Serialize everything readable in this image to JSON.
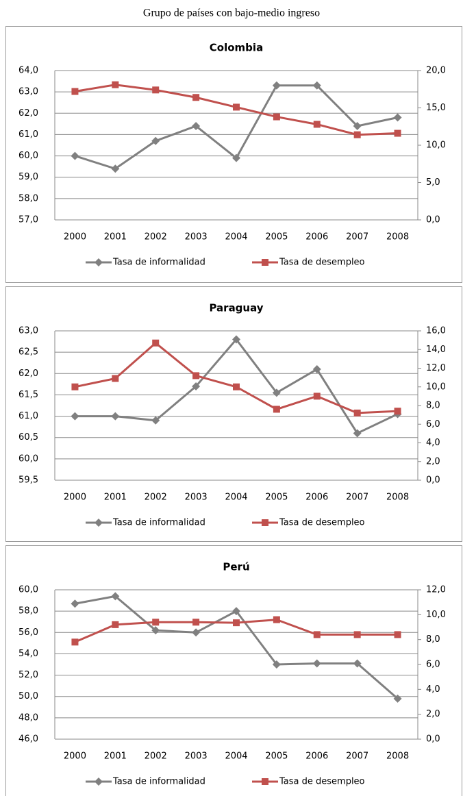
{
  "title": "Grupo de países con bajo-medio ingreso",
  "chart_data": [
    {
      "type": "line",
      "title": "Colombia",
      "categories": [
        "2000",
        "2001",
        "2002",
        "2003",
        "2004",
        "2005",
        "2006",
        "2007",
        "2008"
      ],
      "series": [
        {
          "name": "Tasa de informalidad",
          "color": "#808080",
          "marker": "diamond",
          "values": [
            60.0,
            59.4,
            60.7,
            61.4,
            59.9,
            63.3,
            63.3,
            61.4,
            61.8
          ]
        },
        {
          "name": "Tasa de desempleo",
          "color": "#c0504d",
          "marker": "square",
          "axis": "y2",
          "values": [
            17.2,
            18.1,
            17.4,
            16.4,
            15.1,
            13.8,
            12.8,
            11.4,
            11.6
          ]
        }
      ],
      "ylim": [
        57,
        64
      ],
      "yticks": [
        {
          "value": 57,
          "label": "57,0"
        },
        {
          "value": 58,
          "label": "58,0"
        },
        {
          "value": 59,
          "label": "59,0"
        },
        {
          "value": 60,
          "label": "60,0"
        },
        {
          "value": 61,
          "label": "61,0"
        },
        {
          "value": 62,
          "label": "62,0"
        },
        {
          "value": 63,
          "label": "63,0"
        },
        {
          "value": 64,
          "label": "64,0"
        }
      ],
      "y2lim": [
        0,
        20
      ],
      "y2ticks": [
        {
          "value": 0,
          "label": "0,0"
        },
        {
          "value": 5,
          "label": "5,0"
        },
        {
          "value": 10,
          "label": "10,0"
        },
        {
          "value": 15,
          "label": "15,0"
        },
        {
          "value": 20,
          "label": "20,0"
        }
      ],
      "grid": true,
      "legend": "bottom"
    },
    {
      "type": "line",
      "title": "Paraguay",
      "categories": [
        "2000",
        "2001",
        "2002",
        "2003",
        "2004",
        "2005",
        "2006",
        "2007",
        "2008"
      ],
      "series": [
        {
          "name": "Tasa de informalidad",
          "color": "#808080",
          "marker": "diamond",
          "values": [
            61.0,
            61.0,
            60.9,
            61.7,
            62.8,
            61.55,
            62.1,
            60.6,
            61.05
          ]
        },
        {
          "name": "Tasa de desempleo",
          "color": "#c0504d",
          "marker": "square",
          "axis": "y2",
          "values": [
            10.0,
            10.9,
            14.7,
            11.2,
            10.0,
            7.6,
            9.0,
            7.2,
            7.4
          ]
        }
      ],
      "ylim": [
        59.5,
        63
      ],
      "yticks": [
        {
          "value": 59.5,
          "label": "59,5"
        },
        {
          "value": 60,
          "label": "60,0"
        },
        {
          "value": 60.5,
          "label": "60,5"
        },
        {
          "value": 61,
          "label": "61,0"
        },
        {
          "value": 61.5,
          "label": "61,5"
        },
        {
          "value": 62,
          "label": "62,0"
        },
        {
          "value": 62.5,
          "label": "62,5"
        },
        {
          "value": 63,
          "label": "63,0"
        }
      ],
      "y2lim": [
        0,
        16
      ],
      "y2ticks": [
        {
          "value": 0,
          "label": "0,0"
        },
        {
          "value": 2,
          "label": "2,0"
        },
        {
          "value": 4,
          "label": "4,0"
        },
        {
          "value": 6,
          "label": "6,0"
        },
        {
          "value": 8,
          "label": "8,0"
        },
        {
          "value": 10,
          "label": "10,0"
        },
        {
          "value": 12,
          "label": "12,0"
        },
        {
          "value": 14,
          "label": "14,0"
        },
        {
          "value": 16,
          "label": "16,0"
        }
      ],
      "grid": true,
      "legend": "bottom"
    },
    {
      "type": "line",
      "title": "Perú",
      "categories": [
        "2000",
        "2001",
        "2002",
        "2003",
        "2004",
        "2005",
        "2006",
        "2007",
        "2008"
      ],
      "series": [
        {
          "name": "Tasa de informalidad",
          "color": "#808080",
          "marker": "diamond",
          "values": [
            58.7,
            59.4,
            56.2,
            56.0,
            58.0,
            53.0,
            53.1,
            53.1,
            49.8
          ]
        },
        {
          "name": "Tasa de desempleo",
          "color": "#c0504d",
          "marker": "square",
          "axis": "y2",
          "values": [
            7.8,
            9.2,
            9.4,
            9.4,
            9.35,
            9.6,
            8.4,
            8.4,
            8.4
          ]
        }
      ],
      "ylim": [
        46,
        60
      ],
      "yticks": [
        {
          "value": 46,
          "label": "46,0"
        },
        {
          "value": 48,
          "label": "48,0"
        },
        {
          "value": 50,
          "label": "50,0"
        },
        {
          "value": 52,
          "label": "52,0"
        },
        {
          "value": 54,
          "label": "54,0"
        },
        {
          "value": 56,
          "label": "56,0"
        },
        {
          "value": 58,
          "label": "58,0"
        },
        {
          "value": 60,
          "label": "60,0"
        }
      ],
      "y2lim": [
        0,
        12
      ],
      "y2ticks": [
        {
          "value": 0,
          "label": "0,0"
        },
        {
          "value": 2,
          "label": "2,0"
        },
        {
          "value": 4,
          "label": "4,0"
        },
        {
          "value": 6,
          "label": "6,0"
        },
        {
          "value": 8,
          "label": "8,0"
        },
        {
          "value": 10,
          "label": "10,0"
        },
        {
          "value": 12,
          "label": "12,0"
        }
      ],
      "grid": true,
      "legend": "bottom"
    }
  ]
}
